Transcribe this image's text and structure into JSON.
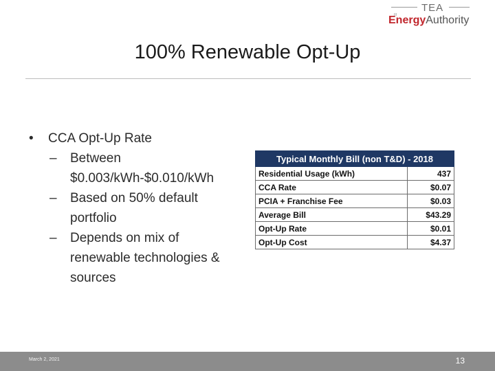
{
  "logo": {
    "tea": "TEA",
    "energy": "Energy",
    "authority": "Authority",
    "tick": "III"
  },
  "title": "100% Renewable Opt-Up",
  "bullets": {
    "main": "CCA Opt-Up Rate",
    "subs": [
      "Between $0.003/kWh-$0.010/kWh",
      "Based on 50% default portfolio",
      "Depends on mix of renewable technologies & sources"
    ]
  },
  "table": {
    "header": "Typical Monthly Bill (non T&D) - 2018",
    "rows": [
      {
        "label": "Residential Usage (kWh)",
        "value": "437"
      },
      {
        "label": "CCA Rate",
        "value": "$0.07"
      },
      {
        "label": "PCIA + Franchise Fee",
        "value": "$0.03"
      },
      {
        "label": "Average Bill",
        "value": "$43.29"
      },
      {
        "label": "Opt-Up Rate",
        "value": "$0.01"
      },
      {
        "label": "Opt-Up Cost",
        "value": "$4.37"
      }
    ]
  },
  "footer": {
    "date": "March 2, 2021",
    "page": "13"
  }
}
